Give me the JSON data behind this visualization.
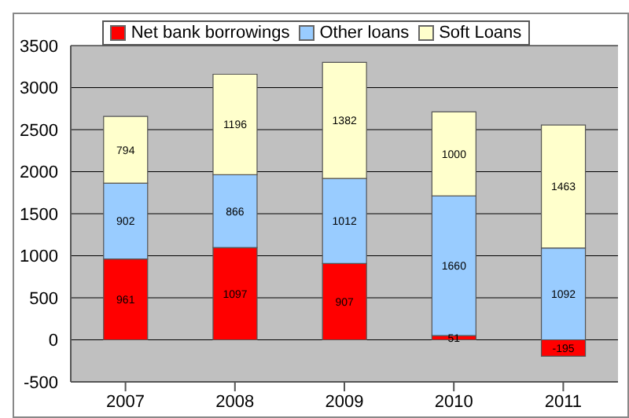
{
  "chart_data": {
    "type": "bar",
    "stacked": true,
    "categories": [
      "2007",
      "2008",
      "2009",
      "2010",
      "2011"
    ],
    "series": [
      {
        "name": "Net bank borrowings",
        "color": "#ff0000",
        "values": [
          961,
          1097,
          907,
          51,
          -195
        ]
      },
      {
        "name": "Other loans",
        "color": "#99ccff",
        "values": [
          902,
          866,
          1012,
          1660,
          1092
        ]
      },
      {
        "name": "Soft Loans",
        "color": "#ffffcc",
        "values": [
          794,
          1196,
          1382,
          1000,
          1463
        ]
      }
    ],
    "ylim": [
      -500,
      3500
    ],
    "yticks": [
      -500,
      0,
      500,
      1000,
      1500,
      2000,
      2500,
      3000,
      3500
    ],
    "grid": "y",
    "legend": "top",
    "data_labels": true
  }
}
